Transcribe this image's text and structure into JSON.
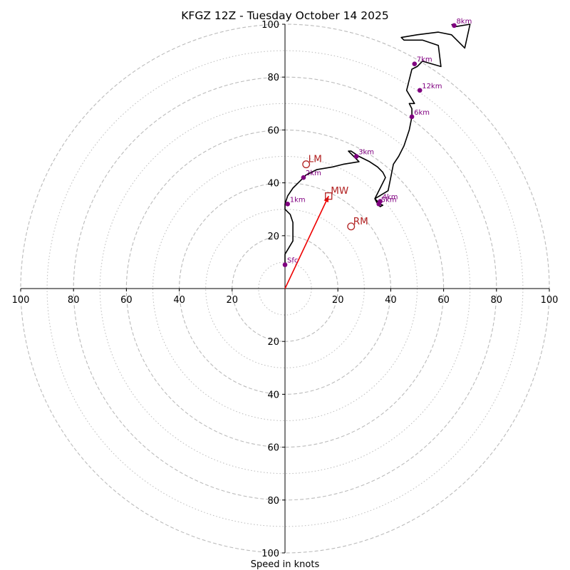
{
  "chart_data": {
    "type": "hodograph",
    "title": "KFGZ 12Z - Tuesday October 14 2025",
    "xlabel": "Speed in knots",
    "ylabel": "",
    "xlim": [
      -100,
      100
    ],
    "ylim": [
      -100,
      100
    ],
    "grid": true,
    "rings_major": [
      20,
      40,
      60,
      80,
      100
    ],
    "rings_minor": [
      10,
      30,
      50,
      70,
      90
    ],
    "x_ticks": [
      {
        "value": -100,
        "label": "100"
      },
      {
        "value": -80,
        "label": "80"
      },
      {
        "value": -60,
        "label": "60"
      },
      {
        "value": -40,
        "label": "40"
      },
      {
        "value": -20,
        "label": "20"
      },
      {
        "value": 20,
        "label": "20"
      },
      {
        "value": 40,
        "label": "40"
      },
      {
        "value": 60,
        "label": "60"
      },
      {
        "value": 80,
        "label": "80"
      },
      {
        "value": 100,
        "label": "100"
      }
    ],
    "y_ticks": [
      {
        "value": 100,
        "label": "100"
      },
      {
        "value": 80,
        "label": "80"
      },
      {
        "value": 60,
        "label": "60"
      },
      {
        "value": 40,
        "label": "40"
      },
      {
        "value": 20,
        "label": "20"
      },
      {
        "value": -20,
        "label": "20"
      },
      {
        "value": -40,
        "label": "40"
      },
      {
        "value": -60,
        "label": "60"
      },
      {
        "value": -80,
        "label": "80"
      },
      {
        "value": -100,
        "label": "100"
      }
    ],
    "hodograph_trace": {
      "color": "#000000",
      "u": [
        0,
        0,
        3,
        3,
        2,
        0,
        0,
        1,
        3,
        5,
        8,
        12,
        18,
        22,
        28,
        26,
        24,
        25,
        28,
        32,
        35,
        37,
        37,
        38,
        36,
        34,
        35,
        36,
        37,
        36,
        35,
        34,
        39,
        40,
        41,
        43,
        45,
        47,
        48,
        48,
        47,
        49,
        46,
        48,
        50,
        52,
        59,
        58,
        52,
        45,
        44,
        50,
        58,
        63,
        68,
        70,
        64,
        63
      ],
      "v": [
        9,
        13,
        18,
        25,
        28,
        30,
        32,
        35,
        38,
        40,
        43,
        45,
        46,
        47,
        48,
        50,
        52,
        52,
        50,
        48,
        46,
        44,
        44,
        42,
        38,
        34,
        32,
        31,
        31.5,
        32,
        33,
        34,
        37,
        42,
        47,
        50,
        54,
        60,
        65,
        68,
        70,
        70,
        75,
        83,
        84,
        86,
        84,
        92,
        94,
        94,
        95,
        96,
        97,
        96,
        91,
        100,
        99,
        100
      ]
    },
    "height_points": [
      {
        "label": "Sfc",
        "u": 0,
        "v": 9
      },
      {
        "label": "1km",
        "u": 1,
        "v": 32
      },
      {
        "label": "2km",
        "u": 7,
        "v": 42
      },
      {
        "label": "3km",
        "u": 27,
        "v": 50
      },
      {
        "label": "4km",
        "u": 36,
        "v": 33
      },
      {
        "label": "5km",
        "u": 35.5,
        "v": 32
      },
      {
        "label": "6km",
        "u": 48,
        "v": 65
      },
      {
        "label": "7km",
        "u": 49,
        "v": 85
      },
      {
        "label": "8km",
        "u": 64,
        "v": 99.5
      },
      {
        "label": "12km",
        "u": 51,
        "v": 75
      }
    ],
    "storm_motions": [
      {
        "label": "LM",
        "u": 8,
        "v": 47,
        "marker": "circle"
      },
      {
        "label": "RM",
        "u": 25,
        "v": 23.5,
        "marker": "circle"
      },
      {
        "label": "MW",
        "u": 16.5,
        "v": 35,
        "marker": "square"
      }
    ],
    "shear_vector": {
      "from_u": 0,
      "from_v": 0,
      "to_u": 16.5,
      "to_v": 35,
      "color": "#ee0000"
    }
  },
  "colors": {
    "trace": "#000000",
    "height_points": "#800080",
    "markers": "#b22222",
    "vector": "#ee0000",
    "grid": "#bbbbbb"
  }
}
